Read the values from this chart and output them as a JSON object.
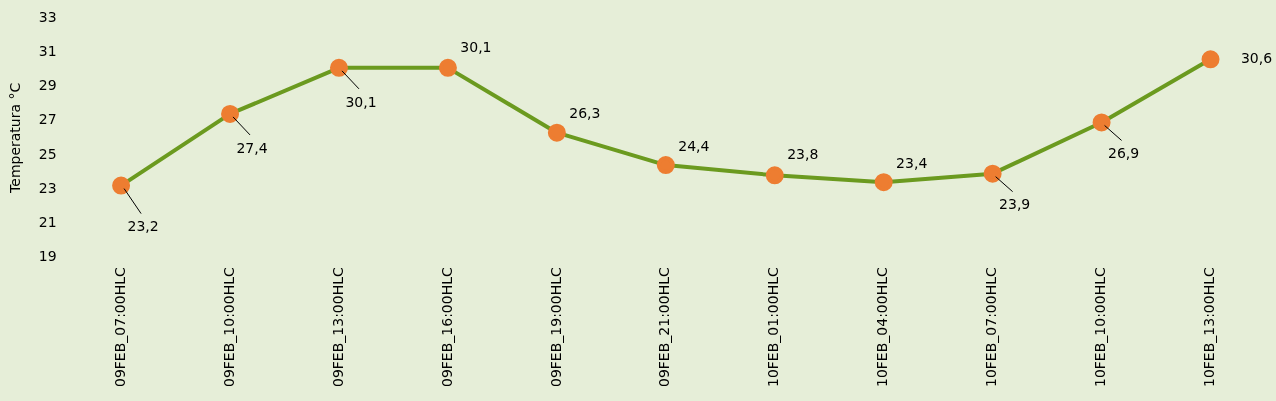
{
  "chart_data": {
    "type": "line",
    "ylabel": "Temperatura °C",
    "categories": [
      "09FEB_07:00HLC",
      "09FEB_10:00HLC",
      "09FEB_13:00HLC",
      "09FEB_16:00HLC",
      "09FEB_19:00HLC",
      "09FEB_21:00HLC",
      "10FEB_01:00HLC",
      "10FEB_04:00HLC",
      "10FEB_07:00HLC",
      "10FEB_10:00HLC",
      "10FEB_13:00HLC"
    ],
    "series": [
      {
        "color": "#6b9a1f",
        "colors": [
          "#ed7d31",
          "#ed7d31",
          "#ed7d31",
          "#ed7d31",
          "#ed7d31",
          "#ed7d31",
          "#ed7d31",
          "#ed7d31",
          "#ed7d31",
          "#ed7d31",
          "#ed7d31"
        ],
        "values": [
          23.2,
          27.4,
          30.1,
          30.1,
          26.3,
          24.4,
          23.8,
          23.4,
          23.9,
          26.9,
          30.6
        ],
        "value_labels": [
          "23,2",
          "27,4",
          "30,1",
          "30,1",
          "26,3",
          "24,4",
          "23,8",
          "23,4",
          "23,9",
          "26,9",
          "30,6"
        ]
      }
    ],
    "ylim": [
      19,
      33
    ],
    "yticks": [
      19,
      21,
      23,
      25,
      27,
      29,
      31,
      33
    ],
    "grid": false,
    "legend": false,
    "marker": "circle",
    "line_style": "solid"
  }
}
